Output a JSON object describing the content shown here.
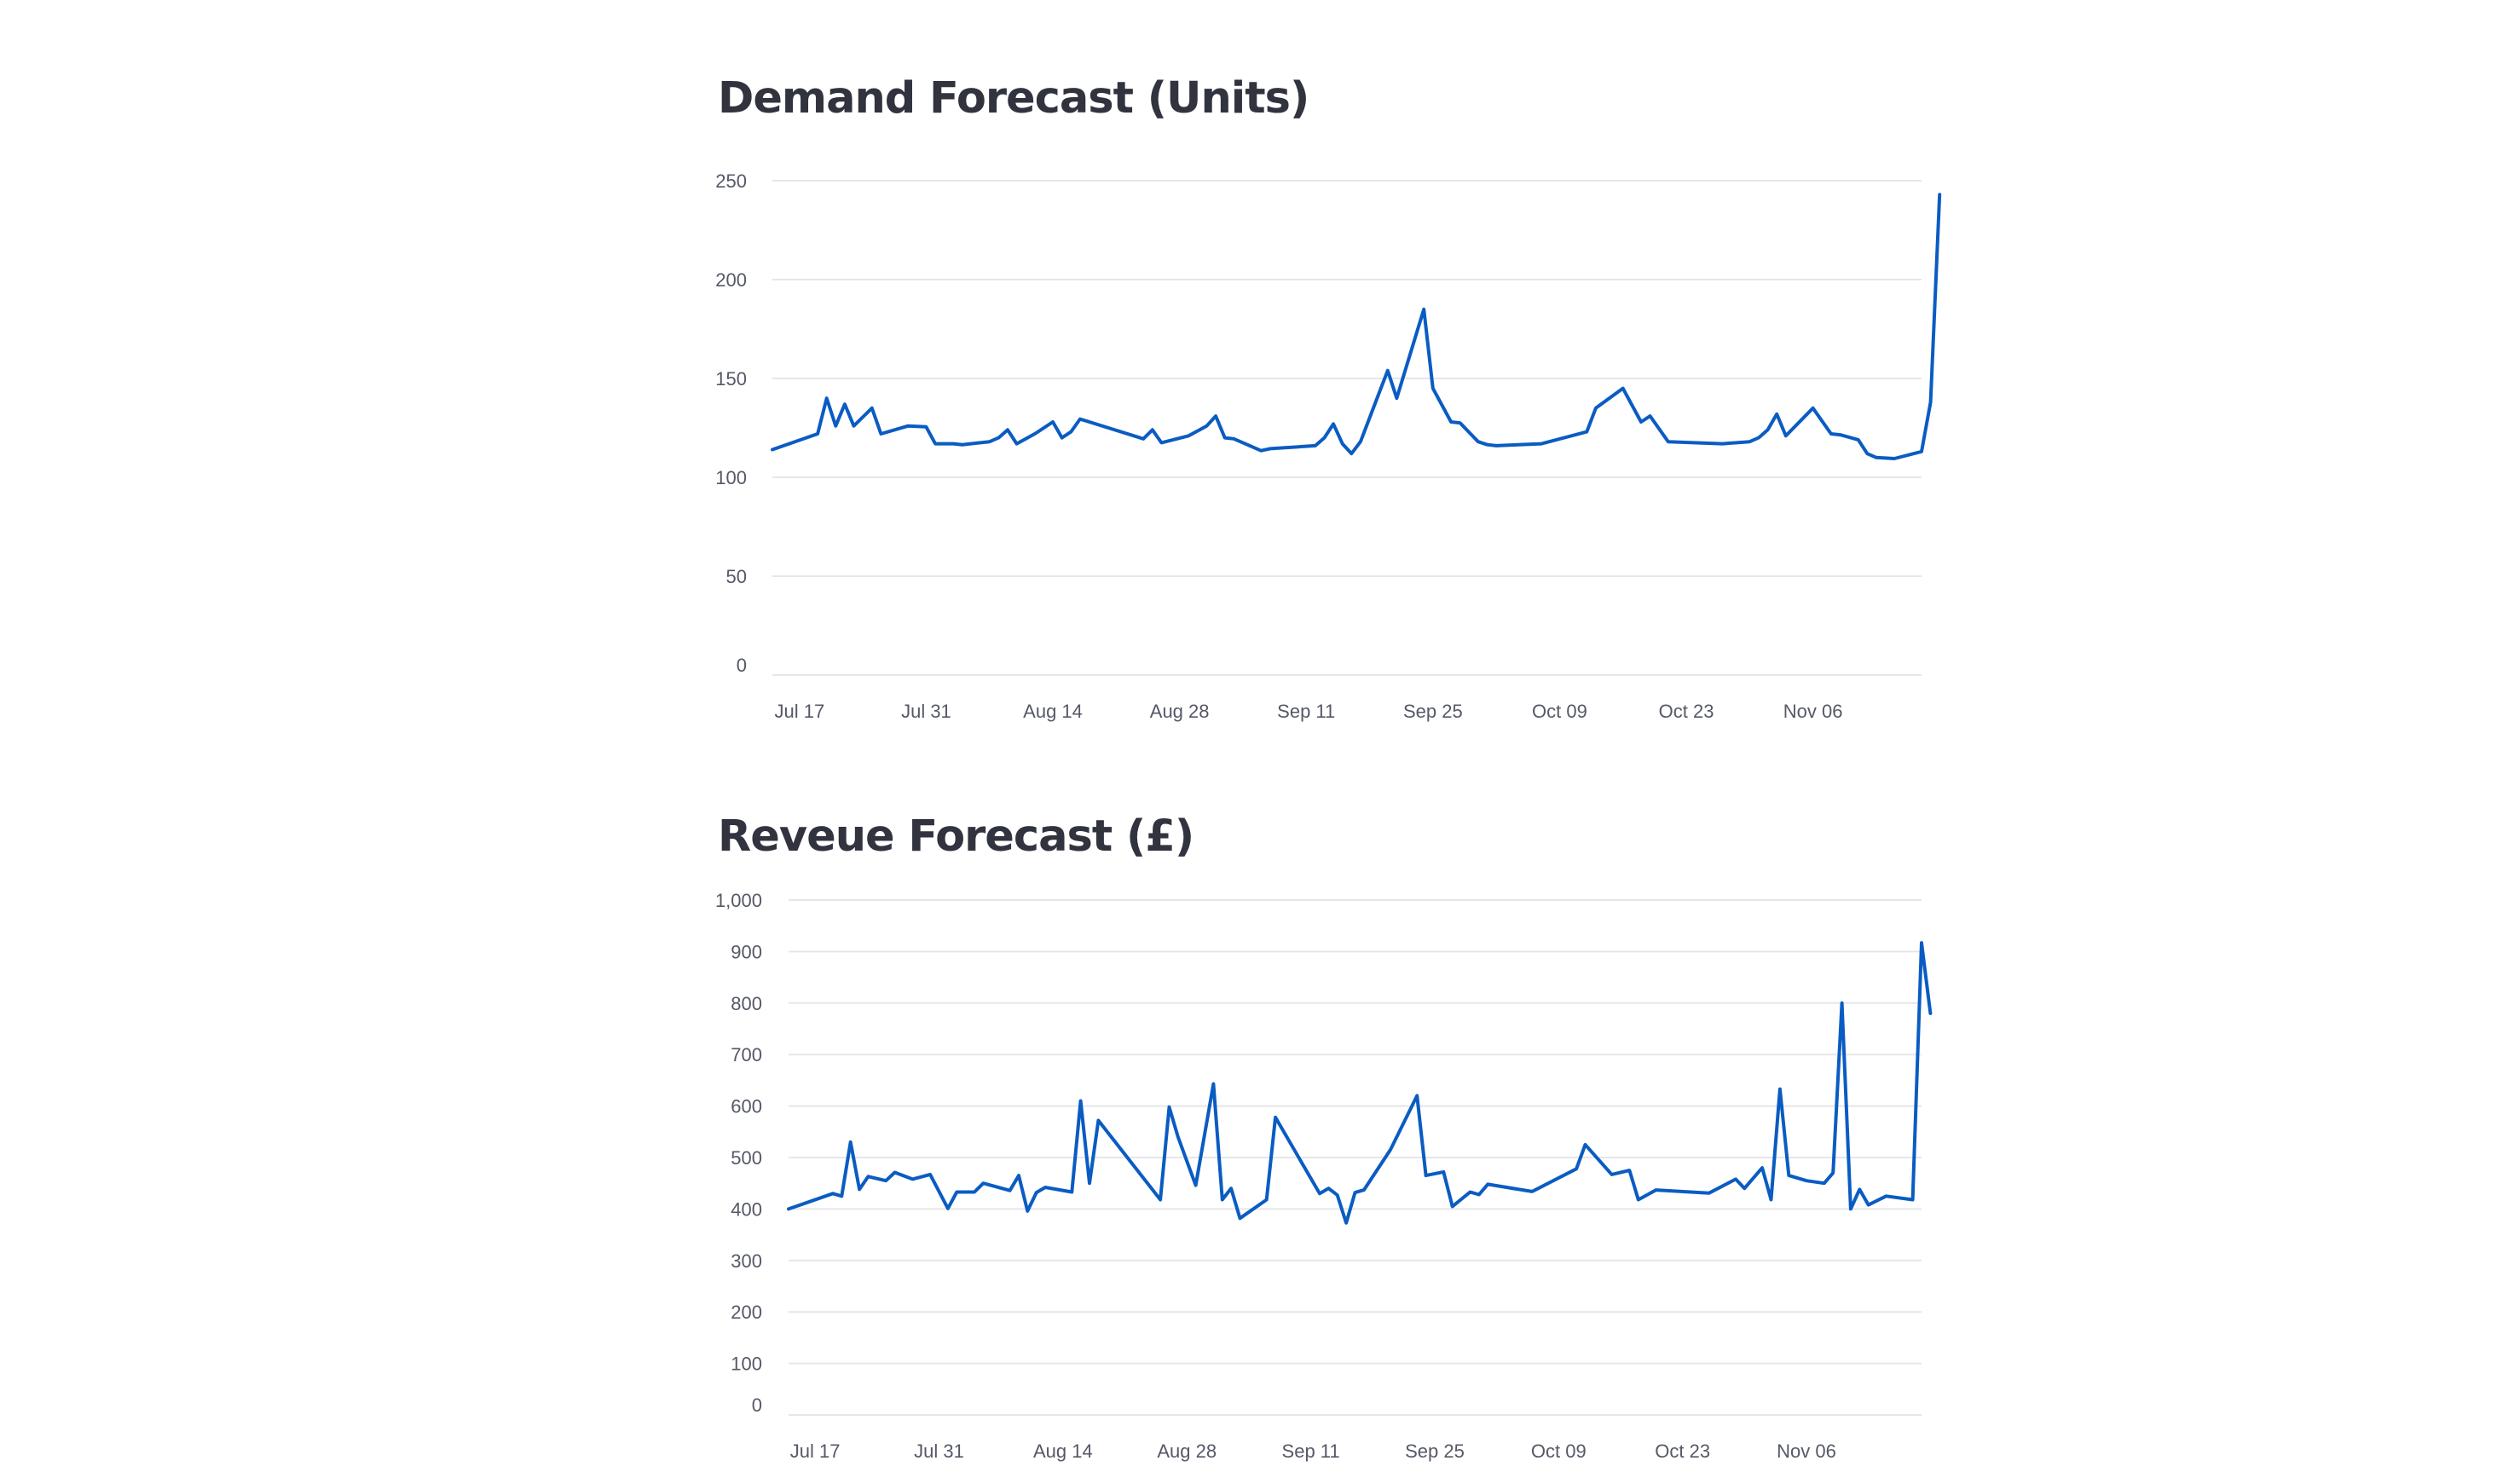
{
  "chart_data": [
    {
      "type": "line",
      "title": "Demand Forecast (Units)",
      "xlabel": "",
      "ylabel": "",
      "ylim": [
        0,
        250
      ],
      "y_ticks": [
        0,
        50,
        100,
        150,
        200,
        250
      ],
      "y_tick_labels": [
        "0",
        "50",
        "100",
        "150",
        "200",
        "250"
      ],
      "x_range": [
        "2023-07-14",
        "2023-11-18"
      ],
      "x_ticks": [
        "2023-07-17",
        "2023-07-31",
        "2023-08-14",
        "2023-08-28",
        "2023-09-11",
        "2023-09-25",
        "2023-10-09",
        "2023-10-23",
        "2023-11-06"
      ],
      "x_tick_labels": [
        "Jul 17",
        "Jul 31",
        "Aug 14",
        "Aug 28",
        "Sep 11",
        "Sep 25",
        "Oct 09",
        "Oct 23",
        "Nov 06"
      ],
      "grid": true,
      "line_color": "#0a5cc2",
      "series": [
        {
          "points": [
            [
              "2023-07-14",
              114
            ],
            [
              "2023-07-19",
              122
            ],
            [
              "2023-07-20",
              140
            ],
            [
              "2023-07-21",
              126
            ],
            [
              "2023-07-22",
              137
            ],
            [
              "2023-07-23",
              126
            ],
            [
              "2023-07-25",
              135
            ],
            [
              "2023-07-26",
              122
            ],
            [
              "2023-07-29",
              126
            ],
            [
              "2023-07-31",
              125.5
            ],
            [
              "2023-08-01",
              117
            ],
            [
              "2023-08-03",
              117
            ],
            [
              "2023-08-04",
              116.5
            ],
            [
              "2023-08-07",
              118
            ],
            [
              "2023-08-08",
              120
            ],
            [
              "2023-08-09",
              124
            ],
            [
              "2023-08-10",
              117
            ],
            [
              "2023-08-12",
              122
            ],
            [
              "2023-08-14",
              128
            ],
            [
              "2023-08-15",
              120
            ],
            [
              "2023-08-16",
              123
            ],
            [
              "2023-08-17",
              129.5
            ],
            [
              "2023-08-24",
              119.5
            ],
            [
              "2023-08-25",
              124
            ],
            [
              "2023-08-26",
              117.5
            ],
            [
              "2023-08-29",
              121
            ],
            [
              "2023-08-31",
              126
            ],
            [
              "2023-09-01",
              131
            ],
            [
              "2023-09-02",
              120
            ],
            [
              "2023-09-03",
              119.5
            ],
            [
              "2023-09-04",
              117.5
            ],
            [
              "2023-09-06",
              113.5
            ],
            [
              "2023-09-07",
              114.5
            ],
            [
              "2023-09-12",
              116
            ],
            [
              "2023-09-13",
              120
            ],
            [
              "2023-09-14",
              127
            ],
            [
              "2023-09-15",
              117
            ],
            [
              "2023-09-16",
              112
            ],
            [
              "2023-09-17",
              118
            ],
            [
              "2023-09-19",
              142
            ],
            [
              "2023-09-20",
              154
            ],
            [
              "2023-09-21",
              140
            ],
            [
              "2023-09-24",
              185
            ],
            [
              "2023-09-25",
              145
            ],
            [
              "2023-09-27",
              128
            ],
            [
              "2023-09-28",
              127.5
            ],
            [
              "2023-09-30",
              118
            ],
            [
              "2023-10-01",
              116.5
            ],
            [
              "2023-10-02",
              116
            ],
            [
              "2023-10-07",
              117
            ],
            [
              "2023-10-12",
              123
            ],
            [
              "2023-10-13",
              135
            ],
            [
              "2023-10-16",
              145
            ],
            [
              "2023-10-18",
              128
            ],
            [
              "2023-10-19",
              131
            ],
            [
              "2023-10-21",
              118
            ],
            [
              "2023-10-27",
              117
            ],
            [
              "2023-10-30",
              118
            ],
            [
              "2023-10-31",
              120
            ],
            [
              "2023-11-01",
              124
            ],
            [
              "2023-11-02",
              132
            ],
            [
              "2023-11-03",
              121
            ],
            [
              "2023-11-06",
              135
            ],
            [
              "2023-11-08",
              122
            ],
            [
              "2023-11-09",
              121.5
            ],
            [
              "2023-11-11",
              119
            ],
            [
              "2023-11-12",
              112
            ],
            [
              "2023-11-13",
              110
            ],
            [
              "2023-11-15",
              109.5
            ],
            [
              "2023-11-18",
              113
            ],
            [
              "2023-11-19",
              138
            ],
            [
              "2023-11-20",
              243
            ]
          ]
        }
      ]
    },
    {
      "type": "line",
      "title": "Reveue Forecast (£)",
      "xlabel": "",
      "ylabel": "",
      "ylim": [
        0,
        1000
      ],
      "y_ticks": [
        0,
        100,
        200,
        300,
        400,
        500,
        600,
        700,
        800,
        900,
        1000
      ],
      "y_tick_labels": [
        "0",
        "100",
        "200",
        "300",
        "400",
        "500",
        "600",
        "700",
        "800",
        "900",
        "1,000"
      ],
      "x_range": [
        "2023-07-14",
        "2023-11-19"
      ],
      "x_ticks": [
        "2023-07-17",
        "2023-07-31",
        "2023-08-14",
        "2023-08-28",
        "2023-09-11",
        "2023-09-25",
        "2023-10-09",
        "2023-10-23",
        "2023-11-06"
      ],
      "x_tick_labels": [
        "Jul 17",
        "Jul 31",
        "Aug 14",
        "Aug 28",
        "Sep 11",
        "Sep 25",
        "Oct 09",
        "Oct 23",
        "Nov 06"
      ],
      "grid": true,
      "line_color": "#0a5cc2",
      "series": [
        {
          "points": [
            [
              "2023-07-14",
              400
            ],
            [
              "2023-07-19",
              430
            ],
            [
              "2023-07-20",
              425
            ],
            [
              "2023-07-21",
              530
            ],
            [
              "2023-07-22",
              438
            ],
            [
              "2023-07-23",
              463
            ],
            [
              "2023-07-25",
              455
            ],
            [
              "2023-07-26",
              471
            ],
            [
              "2023-07-28",
              458
            ],
            [
              "2023-07-30",
              467
            ],
            [
              "2023-08-01",
              401
            ],
            [
              "2023-08-02",
              433
            ],
            [
              "2023-08-04",
              433
            ],
            [
              "2023-08-05",
              450
            ],
            [
              "2023-08-08",
              436
            ],
            [
              "2023-08-09",
              465
            ],
            [
              "2023-08-10",
              396
            ],
            [
              "2023-08-11",
              432
            ],
            [
              "2023-08-12",
              442
            ],
            [
              "2023-08-15",
              433
            ],
            [
              "2023-08-16",
              610
            ],
            [
              "2023-08-17",
              450
            ],
            [
              "2023-08-18",
              572
            ],
            [
              "2023-08-25",
              418
            ],
            [
              "2023-08-26",
              598
            ],
            [
              "2023-08-27",
              540
            ],
            [
              "2023-08-29",
              446
            ],
            [
              "2023-08-31",
              643
            ],
            [
              "2023-09-01",
              418
            ],
            [
              "2023-09-02",
              440
            ],
            [
              "2023-09-03",
              382
            ],
            [
              "2023-09-06",
              418
            ],
            [
              "2023-09-07",
              578
            ],
            [
              "2023-09-12",
              430
            ],
            [
              "2023-09-13",
              440
            ],
            [
              "2023-09-14",
              427
            ],
            [
              "2023-09-15",
              373
            ],
            [
              "2023-09-16",
              432
            ],
            [
              "2023-09-17",
              437
            ],
            [
              "2023-09-20",
              515
            ],
            [
              "2023-09-23",
              620
            ],
            [
              "2023-09-24",
              465
            ],
            [
              "2023-09-26",
              472
            ],
            [
              "2023-09-27",
              405
            ],
            [
              "2023-09-29",
              433
            ],
            [
              "2023-09-30",
              428
            ],
            [
              "2023-10-01",
              448
            ],
            [
              "2023-10-06",
              434
            ],
            [
              "2023-10-11",
              478
            ],
            [
              "2023-10-12",
              525
            ],
            [
              "2023-10-15",
              467
            ],
            [
              "2023-10-17",
              475
            ],
            [
              "2023-10-18",
              418
            ],
            [
              "2023-10-20",
              437
            ],
            [
              "2023-10-26",
              431
            ],
            [
              "2023-10-29",
              458
            ],
            [
              "2023-10-30",
              440
            ],
            [
              "2023-11-01",
              480
            ],
            [
              "2023-11-02",
              418
            ],
            [
              "2023-11-03",
              633
            ],
            [
              "2023-11-04",
              465
            ],
            [
              "2023-11-06",
              455
            ],
            [
              "2023-11-08",
              450
            ],
            [
              "2023-11-09",
              470
            ],
            [
              "2023-11-10",
              800
            ],
            [
              "2023-11-11",
              400
            ],
            [
              "2023-11-12",
              438
            ],
            [
              "2023-11-13",
              408
            ],
            [
              "2023-11-15",
              425
            ],
            [
              "2023-11-18",
              418
            ],
            [
              "2023-11-19",
              917
            ],
            [
              "2023-11-20",
              780
            ]
          ]
        }
      ]
    }
  ]
}
